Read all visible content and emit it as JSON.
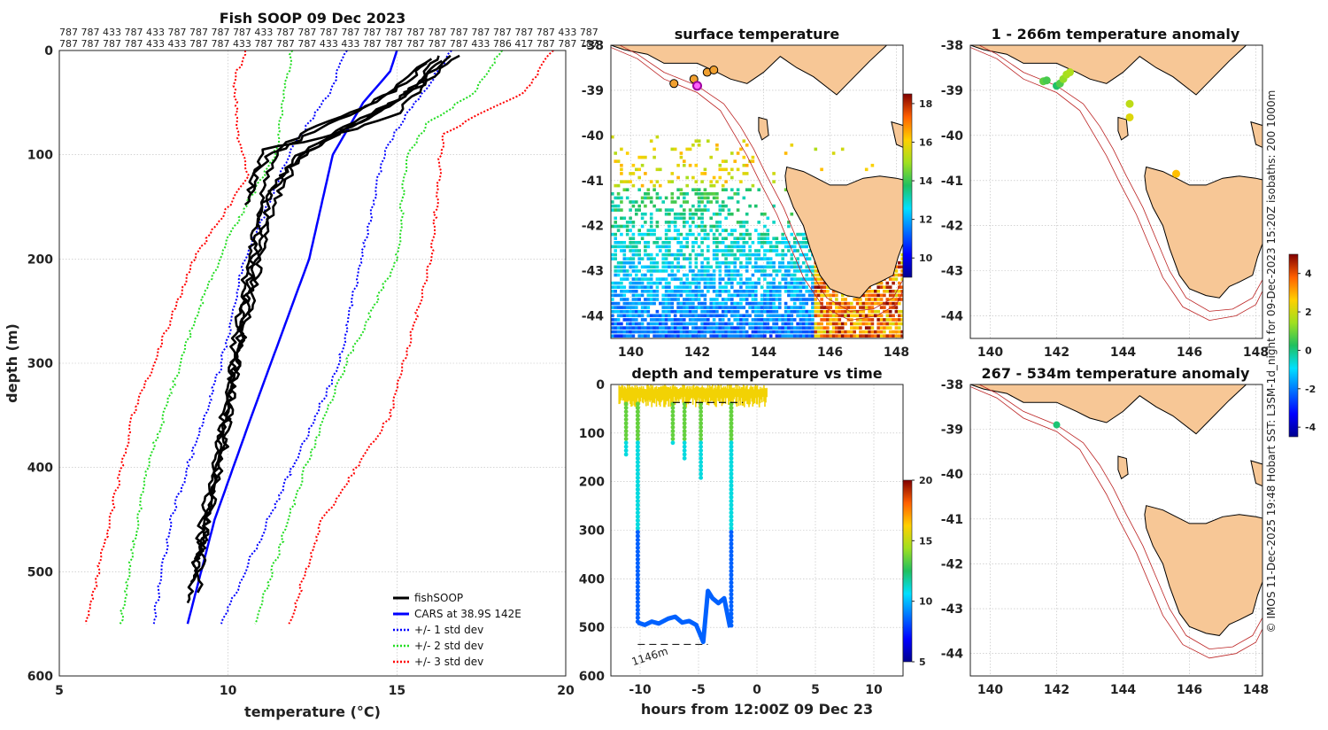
{
  "chart_data": [
    {
      "id": "profile",
      "type": "line",
      "title": "Fish SOOP 09 Dec 2023",
      "xlabel": "temperature (°C)",
      "ylabel": "depth (m)",
      "xlim": [
        5,
        20
      ],
      "ylim": [
        600,
        0
      ],
      "xticks": [
        "5",
        "10",
        "15",
        "20"
      ],
      "yticks": [
        "0",
        "100",
        "200",
        "300",
        "400",
        "500",
        "600"
      ],
      "count_row1": "787 787 433 787 433 787 787 787 787 433 787 787 787 787 787 787 787 787 787 787 787 787 787 433 787",
      "count_row2": "787 787 787 787 433 433 787 787 433 787 787 787 433 433 787 787 787 787 787 433 786 417 787 787 787",
      "legend": [
        "fishSOOP",
        "CARS at 38.9S 142E",
        "+/- 1 std dev",
        "+/- 2 std dev",
        "+/- 3 std dev"
      ],
      "series": [
        {
          "name": "CARS at 38.9S 142E",
          "color": "#0000ff",
          "points": [
            [
              15.0,
              0
            ],
            [
              14.8,
              20
            ],
            [
              14.0,
              50
            ],
            [
              13.1,
              100
            ],
            [
              12.4,
              200
            ],
            [
              10.7,
              350
            ],
            [
              9.6,
              450
            ],
            [
              8.8,
              550
            ]
          ]
        },
        {
          "name": "+1 std dev",
          "color": "#0000ff",
          "points": [
            [
              16.6,
              0
            ],
            [
              16.0,
              30
            ],
            [
              15.1,
              70
            ],
            [
              14.6,
              100
            ],
            [
              13.3,
              300
            ],
            [
              11.2,
              450
            ],
            [
              9.8,
              550
            ]
          ]
        },
        {
          "name": "-1 std dev",
          "color": "#0000ff",
          "points": [
            [
              13.5,
              0
            ],
            [
              13.0,
              40
            ],
            [
              11.8,
              100
            ],
            [
              10.5,
              200
            ],
            [
              9.8,
              300
            ],
            [
              8.3,
              450
            ],
            [
              7.8,
              550
            ]
          ]
        },
        {
          "name": "+2 std dev",
          "color": "#22dd22",
          "points": [
            [
              18.1,
              0
            ],
            [
              17.3,
              40
            ],
            [
              15.9,
              70
            ],
            [
              15.3,
              100
            ],
            [
              15.0,
              200
            ],
            [
              13.5,
              300
            ],
            [
              12.3,
              400
            ],
            [
              10.8,
              550
            ]
          ]
        },
        {
          "name": "-2 std dev",
          "color": "#22dd22",
          "points": [
            [
              11.9,
              0
            ],
            [
              11.6,
              50
            ],
            [
              11.4,
              100
            ],
            [
              10.0,
              180
            ],
            [
              9.1,
              250
            ],
            [
              7.6,
              400
            ],
            [
              6.8,
              550
            ]
          ]
        },
        {
          "name": "+3 std dev",
          "color": "#ff0000",
          "points": [
            [
              19.6,
              0
            ],
            [
              18.8,
              40
            ],
            [
              17.5,
              60
            ],
            [
              16.4,
              80
            ],
            [
              16.3,
              100
            ],
            [
              16.0,
              200
            ],
            [
              14.8,
              350
            ],
            [
              12.8,
              450
            ],
            [
              11.8,
              550
            ]
          ]
        },
        {
          "name": "-3 std dev",
          "color": "#ff0000",
          "points": [
            [
              10.5,
              0
            ],
            [
              10.2,
              30
            ],
            [
              10.3,
              80
            ],
            [
              10.6,
              120
            ],
            [
              9.0,
              200
            ],
            [
              7.2,
              350
            ],
            [
              5.8,
              550
            ]
          ]
        }
      ],
      "fishSOOP": [
        [
          [
            16.2,
            5
          ],
          [
            15.9,
            20
          ],
          [
            15.6,
            40
          ],
          [
            15.0,
            60
          ],
          [
            13.8,
            75
          ],
          [
            12.2,
            88
          ],
          [
            11.0,
            95
          ],
          [
            10.7,
            130
          ],
          [
            10.5,
            148
          ]
        ],
        [
          [
            16.0,
            8
          ],
          [
            15.4,
            25
          ],
          [
            14.6,
            45
          ],
          [
            13.6,
            62
          ],
          [
            12.3,
            82
          ],
          [
            11.2,
            102
          ],
          [
            10.8,
            118
          ],
          [
            10.6,
            142
          ]
        ],
        [
          [
            16.5,
            5
          ],
          [
            16.0,
            22
          ],
          [
            15.3,
            40
          ],
          [
            14.5,
            58
          ],
          [
            13.2,
            80
          ],
          [
            12.3,
            98
          ],
          [
            11.6,
            120
          ],
          [
            11.0,
            150
          ],
          [
            10.6,
            200
          ],
          [
            10.2,
            280
          ],
          [
            9.8,
            360
          ],
          [
            9.3,
            440
          ],
          [
            9.0,
            500
          ],
          [
            8.8,
            530
          ]
        ],
        [
          [
            16.3,
            10
          ],
          [
            15.8,
            28
          ],
          [
            15.0,
            48
          ],
          [
            14.0,
            65
          ],
          [
            12.8,
            85
          ],
          [
            11.9,
            105
          ],
          [
            11.2,
            140
          ],
          [
            10.9,
            190
          ],
          [
            10.3,
            290
          ],
          [
            9.9,
            380
          ],
          [
            9.4,
            450
          ],
          [
            9.1,
            520
          ]
        ],
        [
          [
            16.8,
            5
          ],
          [
            16.1,
            25
          ],
          [
            15.2,
            45
          ],
          [
            14.3,
            62
          ],
          [
            13.0,
            84
          ],
          [
            12.0,
            108
          ],
          [
            11.3,
            150
          ],
          [
            10.7,
            240
          ],
          [
            10.1,
            330
          ],
          [
            9.6,
            420
          ],
          [
            9.2,
            480
          ],
          [
            8.9,
            510
          ]
        ],
        [
          [
            15.9,
            12
          ],
          [
            15.1,
            35
          ],
          [
            13.9,
            55
          ],
          [
            12.6,
            72
          ],
          [
            11.6,
            92
          ],
          [
            11.1,
            125
          ],
          [
            10.9,
            170
          ],
          [
            10.4,
            260
          ],
          [
            9.8,
            370
          ],
          [
            9.3,
            460
          ],
          [
            9.0,
            495
          ]
        ]
      ]
    },
    {
      "id": "sst",
      "type": "heatmap",
      "title": "surface temperature",
      "xlim": [
        139.4,
        148.2
      ],
      "ylim": [
        -44.5,
        -38
      ],
      "xticks": [
        "140",
        "142",
        "144",
        "146",
        "148"
      ],
      "yticks": [
        "-38",
        "-39",
        "-40",
        "-41",
        "-42",
        "-43",
        "-44"
      ],
      "colorbar": {
        "range": [
          9,
          18.5
        ],
        "ticks": [
          "10",
          "12",
          "14",
          "16",
          "18"
        ]
      },
      "markers": [
        [
          141.3,
          -38.85
        ],
        [
          141.9,
          -38.75
        ],
        [
          142.3,
          -38.6
        ],
        [
          142.5,
          -38.55
        ]
      ],
      "current_position": [
        142.0,
        -38.9
      ]
    },
    {
      "id": "depth_time",
      "type": "scatter",
      "title": "depth and temperature vs time",
      "xlabel": "hours from 12:00Z 09 Dec 23",
      "xlim": [
        -12.5,
        12.5
      ],
      "ylim": [
        600,
        0
      ],
      "xticks": [
        "-10",
        "-5",
        "0",
        "5",
        "10"
      ],
      "yticks": [
        "0",
        "100",
        "200",
        "300",
        "400",
        "500",
        "600"
      ],
      "colorbar": {
        "range": [
          5,
          20
        ],
        "ticks": [
          "5",
          "10",
          "15",
          "20"
        ]
      },
      "bottom_label": "1146m",
      "bottom_depth": 535,
      "upper_dashed_depth": 37,
      "profiles": [
        {
          "x": -11.2,
          "d": 150
        },
        {
          "x": -7.2,
          "d": 125
        },
        {
          "x": -6.2,
          "d": 155
        },
        {
          "x": -4.8,
          "d": 195
        }
      ]
    },
    {
      "id": "anom_shallow",
      "type": "scatter",
      "title": "1 - 266m temperature anomaly",
      "xlim": [
        139.4,
        148.2
      ],
      "ylim": [
        -44.5,
        -38
      ],
      "xticks": [
        "140",
        "142",
        "144",
        "146",
        "148"
      ],
      "yticks": [
        "-38",
        "-39",
        "-40",
        "-41",
        "-42",
        "-43",
        "-44"
      ],
      "points": [
        [
          141.6,
          -38.8,
          0.8
        ],
        [
          141.7,
          -38.78,
          0.6
        ],
        [
          142.0,
          -38.9,
          0.2
        ],
        [
          142.1,
          -38.85,
          0.7
        ],
        [
          142.2,
          -38.75,
          1.3
        ],
        [
          142.3,
          -38.65,
          1.5
        ],
        [
          142.4,
          -38.6,
          1.6
        ],
        [
          144.2,
          -39.3,
          1.8
        ],
        [
          144.2,
          -39.6,
          2.2
        ],
        [
          145.6,
          -40.85,
          2.8
        ]
      ]
    },
    {
      "id": "anom_deep",
      "type": "scatter",
      "title": "267 - 534m temperature anomaly",
      "xlim": [
        139.4,
        148.2
      ],
      "ylim": [
        -44.5,
        -38
      ],
      "xticks": [
        "140",
        "142",
        "144",
        "146",
        "148"
      ],
      "yticks": [
        "-38",
        "-39",
        "-40",
        "-41",
        "-42",
        "-43",
        "-44"
      ],
      "points": [
        [
          142.0,
          -38.9,
          0.1
        ]
      ]
    }
  ],
  "anomaly_colorbar": {
    "range": [
      -4.5,
      5
    ],
    "ticks": [
      "-4",
      "-2",
      "0",
      "2",
      "4"
    ]
  },
  "side_note": "© IMOS 11-Dec-2025 19:48 Hobart SST: L3SM-1d_night for 09-Dec-2023 15:20Z isobaths: 200  1000m"
}
